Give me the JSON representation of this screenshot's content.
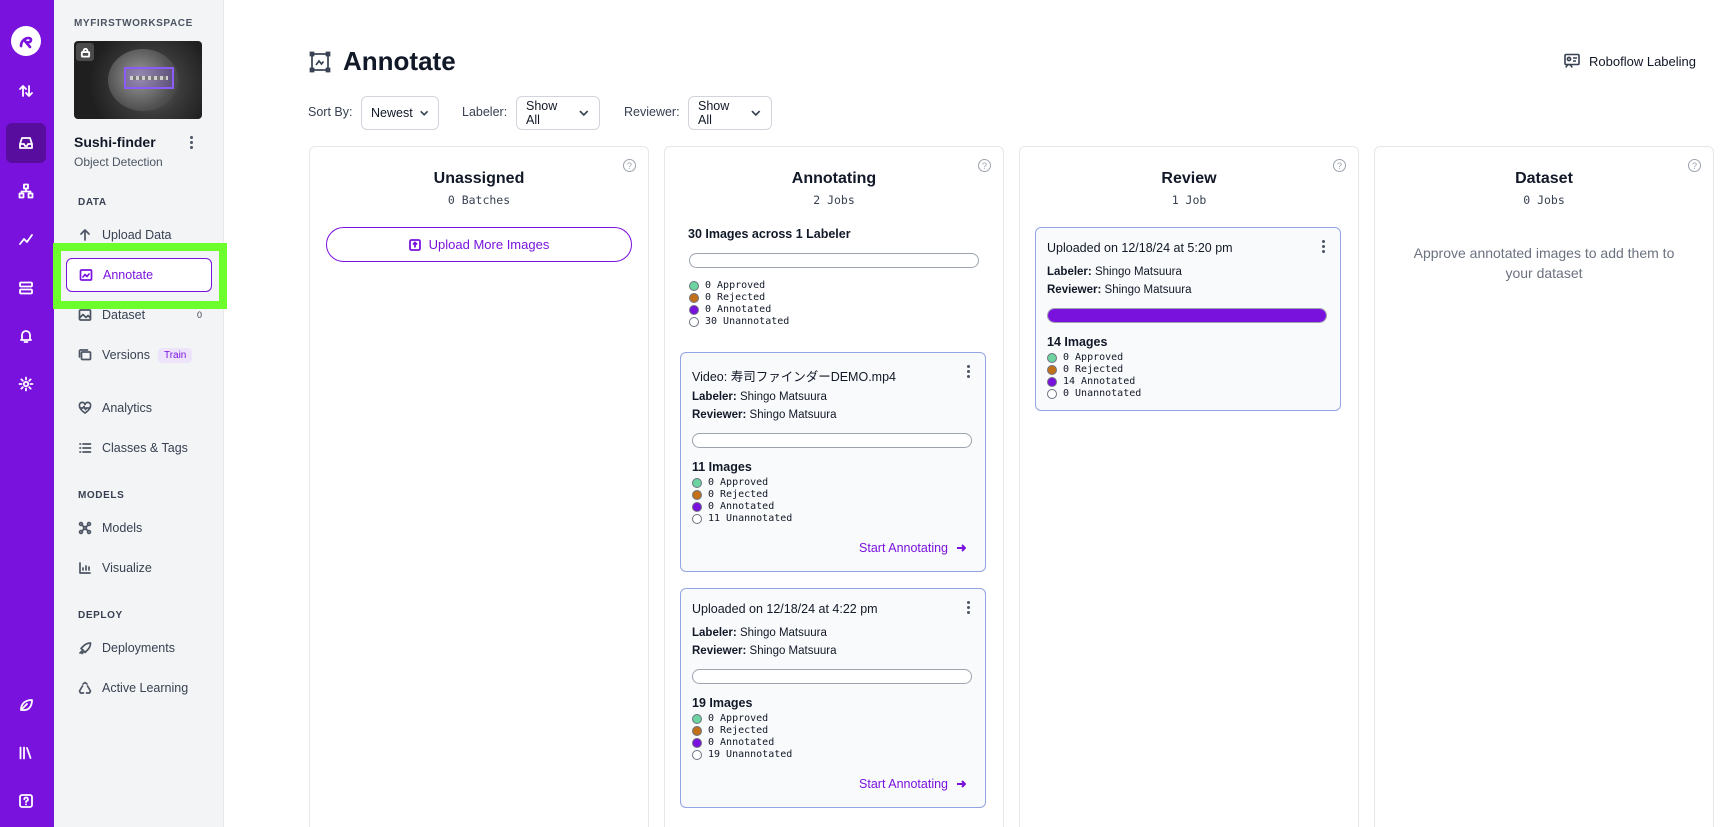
{
  "rail": {
    "icons": [
      "roboflow-logo-icon",
      "transfer-icon",
      "inbox-icon",
      "workflow-icon",
      "analytics-icon",
      "storage-icon",
      "bell-icon",
      "gear-icon",
      "leaf-icon",
      "library-icon",
      "help-icon"
    ],
    "active": "inbox-icon"
  },
  "sidebar": {
    "workspace": "MYFIRSTWORKSPACE",
    "project_name": "Sushi-finder",
    "project_type": "Object Detection",
    "sections": {
      "data": "DATA",
      "models": "MODELS",
      "deploy": "DEPLOY"
    },
    "items": {
      "upload_data": "Upload Data",
      "annotate": "Annotate",
      "dataset": "Dataset",
      "dataset_count": "0",
      "versions": "Versions",
      "train_badge": "Train",
      "analytics": "Analytics",
      "classes_tags": "Classes & Tags",
      "models": "Models",
      "visualize": "Visualize",
      "deployments": "Deployments",
      "active_learning": "Active Learning"
    }
  },
  "header": {
    "title": "Annotate",
    "roboflow_labeling": "Roboflow Labeling"
  },
  "filters": {
    "sort_label": "Sort By:",
    "sort_value": "Newest",
    "labeler_label": "Labeler:",
    "labeler_value": "Show All",
    "reviewer_label": "Reviewer:",
    "reviewer_value": "Show All"
  },
  "colors": {
    "accent": "#7a12dd",
    "approved": "#6dd3a0",
    "rejected": "#c2701a",
    "annotated": "#7a12dd",
    "unannotated": "#ffffff"
  },
  "columns": {
    "unassigned": {
      "title": "Unassigned",
      "subtitle": "0 Batches",
      "upload_button": "Upload More Images"
    },
    "annotating": {
      "title": "Annotating",
      "subtitle": "2 Jobs",
      "summary_title": "30 Images across 1 Labeler",
      "summary_progress": 0,
      "summary_legend": {
        "approved": "0 Approved",
        "rejected": "0 Rejected",
        "annotated": "0 Annotated",
        "unannotated": "30 Unannotated"
      },
      "jobs": [
        {
          "title": "Video: 寿司ファインダーDEMO.mp4",
          "labeler_label": "Labeler:",
          "labeler": "Shingo Matsuura",
          "reviewer_label": "Reviewer:",
          "reviewer": "Shingo Matsuura",
          "progress": 0,
          "images": "11 Images",
          "approved": "0 Approved",
          "rejected": "0 Rejected",
          "annotated": "0 Annotated",
          "unannotated": "11 Unannotated",
          "action": "Start Annotating"
        },
        {
          "title": "Uploaded on 12/18/24 at 4:22 pm",
          "labeler_label": "Labeler:",
          "labeler": "Shingo Matsuura",
          "reviewer_label": "Reviewer:",
          "reviewer": "Shingo Matsuura",
          "progress": 0,
          "images": "19 Images",
          "approved": "0 Approved",
          "rejected": "0 Rejected",
          "annotated": "0 Annotated",
          "unannotated": "19 Unannotated",
          "action": "Start Annotating"
        }
      ]
    },
    "review": {
      "title": "Review",
      "subtitle": "1 Job",
      "job": {
        "title": "Uploaded on 12/18/24 at 5:20 pm",
        "labeler_label": "Labeler:",
        "labeler": "Shingo Matsuura",
        "reviewer_label": "Reviewer:",
        "reviewer": "Shingo Matsuura",
        "progress": 1,
        "images": "14 Images",
        "approved": "0 Approved",
        "rejected": "0 Rejected",
        "annotated": "14 Annotated",
        "unannotated": "0 Unannotated"
      }
    },
    "dataset": {
      "title": "Dataset",
      "subtitle": "0 Jobs",
      "empty_note": "Approve annotated images to add them to your dataset"
    }
  }
}
